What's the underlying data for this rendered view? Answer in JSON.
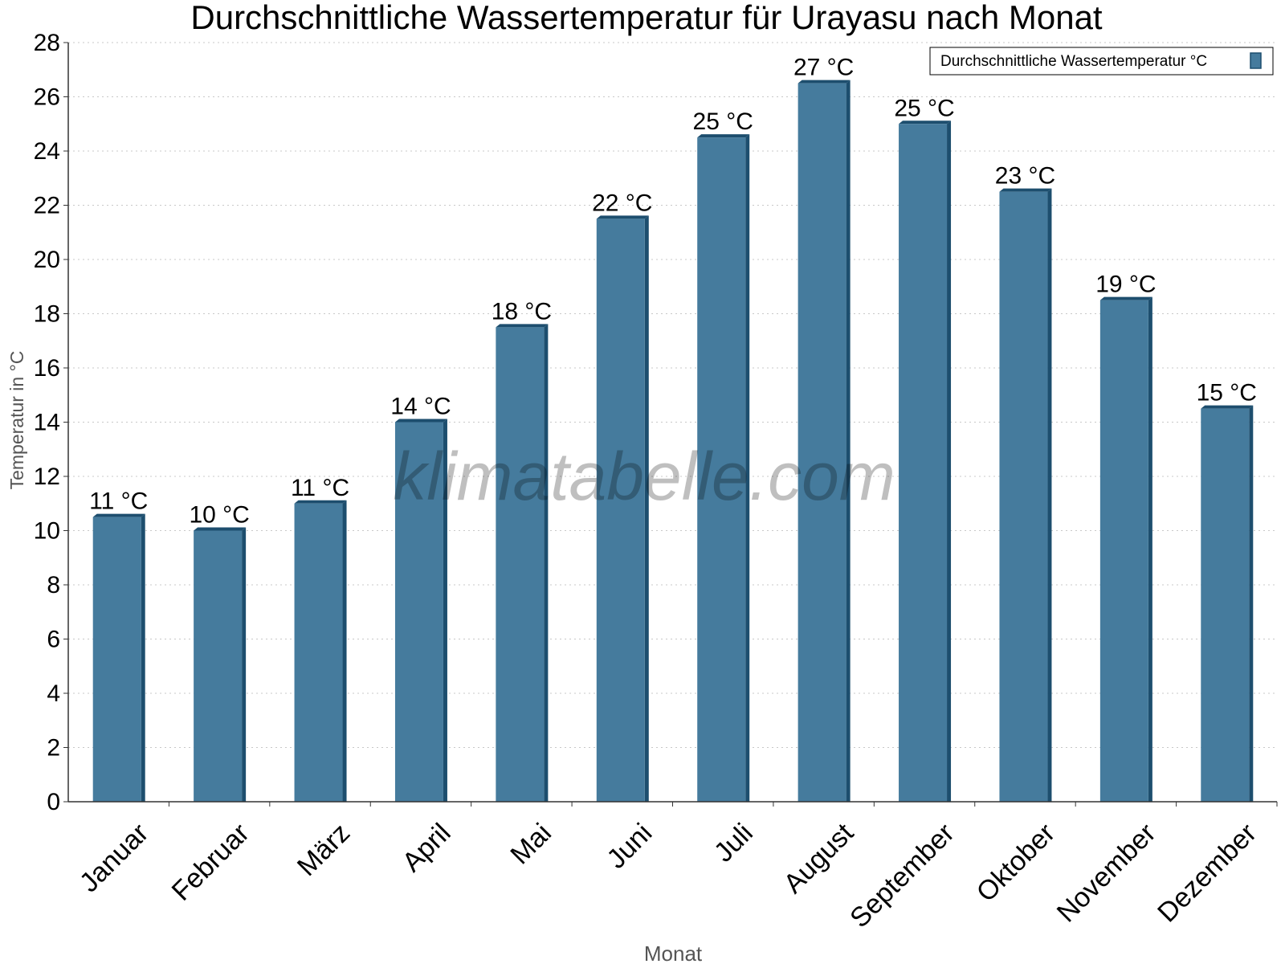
{
  "chart_data": {
    "type": "bar",
    "title": "Durchschnittliche Wassertemperatur für Urayasu nach Monat",
    "xlabel": "Monat",
    "ylabel": "Temperatur in °C",
    "categories": [
      "Januar",
      "Februar",
      "März",
      "April",
      "Mai",
      "Juni",
      "Juli",
      "August",
      "September",
      "Oktober",
      "November",
      "Dezember"
    ],
    "series": [
      {
        "name": "Durchschnittliche Wassertemperatur °C",
        "values": [
          10.5,
          10.0,
          11.0,
          14.0,
          17.5,
          21.5,
          24.5,
          26.5,
          25.0,
          22.5,
          18.5,
          14.5
        ],
        "labels": [
          "11 °C",
          "10 °C",
          "11 °C",
          "14 °C",
          "18 °C",
          "22 °C",
          "25 °C",
          "27 °C",
          "25 °C",
          "23 °C",
          "19 °C",
          "15 °C"
        ],
        "color": "#457b9d"
      }
    ],
    "ylim": [
      0,
      28
    ],
    "yticks": [
      0,
      2,
      4,
      6,
      8,
      10,
      12,
      14,
      16,
      18,
      20,
      22,
      24,
      26,
      28
    ],
    "grid": true,
    "legend_position": "top-right"
  },
  "watermark": "klimatabelle.com",
  "colors": {
    "bar": "#457b9d",
    "bar_side": "#1d4e6e",
    "grid": "#c8c8c8",
    "axis_title": "#555555"
  }
}
